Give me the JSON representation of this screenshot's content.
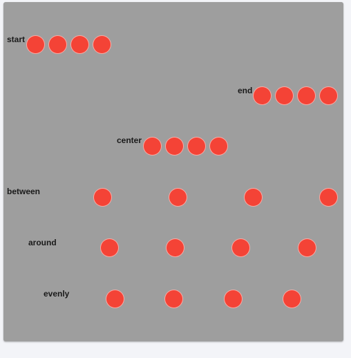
{
  "rows": [
    {
      "label": "start",
      "dots": 4
    },
    {
      "label": "end",
      "dots": 4
    },
    {
      "label": "center",
      "dots": 4
    },
    {
      "label": "between",
      "dots": 4
    },
    {
      "label": "around",
      "dots": 4
    },
    {
      "label": "evenly",
      "dots": 4
    }
  ],
  "colors": {
    "panel": "#9e9e9e",
    "dot": "#f44336",
    "background": "#f3f4f8"
  }
}
